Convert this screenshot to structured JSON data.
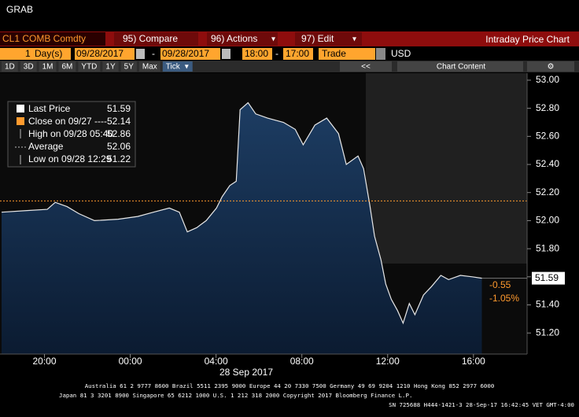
{
  "ui": {
    "title": "GRAB",
    "security": "CL1 COMB Comdty",
    "menu": [
      "95) Compare",
      "96) Actions",
      "97) Edit"
    ],
    "chart_name": "Intraday Price Chart",
    "range": {
      "count": "1",
      "unit": "Day(s)",
      "start_date": "09/28/2017",
      "dash": "-",
      "end_date": "09/28/2017",
      "start_time": "18:00",
      "end_time": "17:00",
      "field": "Trade",
      "currency": "USD"
    },
    "periods": [
      "1D",
      "3D",
      "1M",
      "6M",
      "YTD",
      "1Y",
      "5Y",
      "Max",
      "Tick"
    ],
    "back": "<<",
    "content_button": "Chart Content",
    "footer": [
      "Australia 61 2 9777 8600 Brazil 5511 2395 9000 Europe 44 20 7330 7500 Germany 49 69 9204 1210 Hong Kong 852 2977 6000",
      "Japan 81 3 3201 8900     Singapore 65 6212 1000     U.S. 1 212 318 2000     Copyright 2017 Bloomberg Finance L.P.",
      "SN 725688 H444-1421-3 28-Sep-17 16:42:45 VET  GMT-4:00"
    ]
  },
  "chart_data": {
    "type": "area",
    "color": "#e8e8e8",
    "x": [
      0,
      1.03,
      2.13,
      2.5,
      3.05,
      3.6,
      4.33,
      5.43,
      6.35,
      7.08,
      7.82,
      8.29,
      8.66,
      9.1,
      9.54,
      10.02,
      10.28,
      10.64,
      10.94,
      11.12,
      11.49,
      11.85,
      12.4,
      13.14,
      13.69,
      14.06,
      14.61,
      15.16,
      15.71,
      16.07,
      16.62,
      16.88,
      17.17,
      17.39,
      17.69,
      17.91,
      18.17,
      18.46,
      18.72,
      19.01,
      19.27,
      19.67,
      20.04,
      20.48,
      20.84,
      21.39,
      21.94,
      22.39
    ],
    "values": [
      52.06,
      52.07,
      52.08,
      52.13,
      52.1,
      52.05,
      52.0,
      52.01,
      52.03,
      52.06,
      52.09,
      52.06,
      51.92,
      51.95,
      52.0,
      52.09,
      52.17,
      52.25,
      52.28,
      52.79,
      52.84,
      52.76,
      52.73,
      52.7,
      52.65,
      52.54,
      52.68,
      52.73,
      52.62,
      52.4,
      52.46,
      52.37,
      52.11,
      51.89,
      51.72,
      51.55,
      51.44,
      51.36,
      51.27,
      51.41,
      51.33,
      51.47,
      51.53,
      51.61,
      51.58,
      51.61,
      51.6,
      51.59
    ],
    "xlim": [
      0,
      24.5
    ],
    "xticks": [
      {
        "value": 2,
        "label": "20:00"
      },
      {
        "value": 6,
        "label": "00:00"
      },
      {
        "value": 10,
        "label": "04:00"
      },
      {
        "value": 14,
        "label": "08:00"
      },
      {
        "value": 18,
        "label": "12:00"
      },
      {
        "value": 22,
        "label": "16:00"
      }
    ],
    "date_label": "28 Sep 2017",
    "ylim": [
      51.05,
      53.05
    ],
    "yticks": [
      {
        "value": 53,
        "label": "53.00"
      },
      {
        "value": 52.8,
        "label": "52.80"
      },
      {
        "value": 52.6,
        "label": "52.60"
      },
      {
        "value": 52.4,
        "label": "52.40"
      },
      {
        "value": 52.2,
        "label": "52.20"
      },
      {
        "value": 52,
        "label": "52.00"
      },
      {
        "value": 51.8,
        "label": "51.80"
      },
      {
        "value": 51.6,
        "label": "51.60"
      },
      {
        "value": 51.4,
        "label": "51.40"
      },
      {
        "value": 51.2,
        "label": "51.20"
      }
    ],
    "legend": [
      {
        "label": "Last Price",
        "value": 51.59
      },
      {
        "label": "Close on 09/27 ----",
        "value": 52.14
      },
      {
        "label": "High on 09/28 05:40",
        "value": 52.86
      },
      {
        "label": "Average",
        "value": 52.06
      },
      {
        "label": "Low on 09/28 12:29",
        "value": 51.22
      }
    ],
    "change": [
      "-0.55",
      "-1.05%"
    ]
  }
}
